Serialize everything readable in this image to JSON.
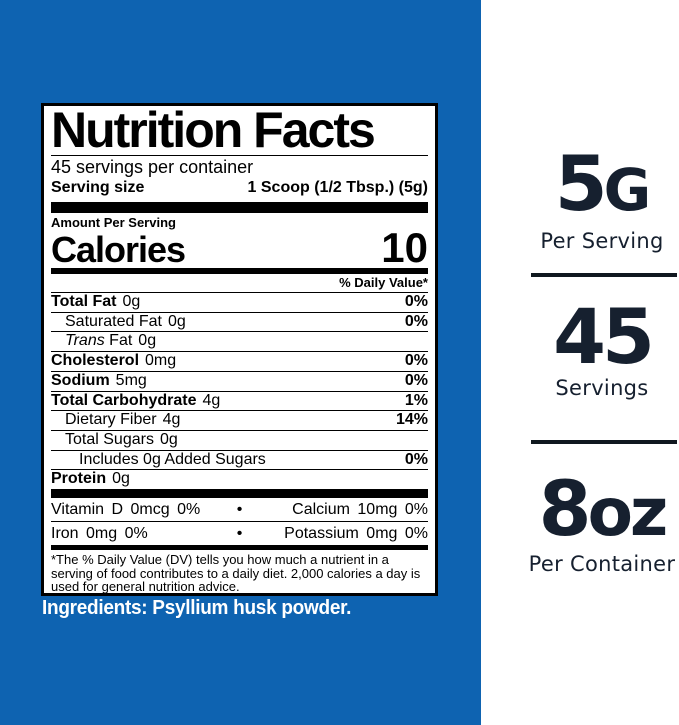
{
  "colors": {
    "background_blue": "#0e63b1",
    "highlight_navy": "#16202f",
    "divider_black": "#10181f",
    "label_background": "#ffffff",
    "label_text": "#000000",
    "ingredients_text": "#ffffff"
  },
  "nutrition_label": {
    "title": "Nutrition Facts",
    "servings_per_container": "45 servings per container",
    "serving_size": {
      "label": "Serving size",
      "value": "1 Scoop (1/2 Tbsp.) (5g)"
    },
    "amount_per_serving": "Amount Per Serving",
    "calories": {
      "label": "Calories",
      "value": "10"
    },
    "daily_value_header": "% Daily Value*",
    "rows": [
      {
        "name": "Total Fat",
        "amount": "0g",
        "dv": "0%"
      },
      {
        "name": "Saturated Fat",
        "amount": "0g",
        "dv": "0%"
      },
      {
        "name_italic": "Trans",
        "name": "Fat",
        "amount": "0g",
        "dv": ""
      },
      {
        "name": "Cholesterol",
        "amount": "0mg",
        "dv": "0%"
      },
      {
        "name": "Sodium",
        "amount": "5mg",
        "dv": "0%"
      },
      {
        "name": "Total Carbohydrate",
        "amount": "4g",
        "dv": "1%"
      },
      {
        "name": "Dietary Fiber",
        "amount": "4g",
        "dv": "14%"
      },
      {
        "name": "Total Sugars",
        "amount": "0g",
        "dv": ""
      },
      {
        "name": "Includes 0g Added Sugars",
        "amount": "",
        "dv": "0%"
      },
      {
        "name": "Protein",
        "amount": "0g",
        "dv": ""
      }
    ],
    "micronutrients": [
      {
        "left": "Vitamin D 0mcg 0%",
        "bullet": "•",
        "right": "Calcium 10mg 0%"
      },
      {
        "left": "Iron 0mg 0%",
        "bullet": "•",
        "right": "Potassium 0mg 0%"
      }
    ],
    "footnote": "*The % Daily Value (DV) tells you how much a nutrient in a serving of food contributes to a daily diet.  2,000 calories a day is used for general nutrition advice."
  },
  "ingredients": "Ingredients: Psyllium husk powder.",
  "highlights": [
    {
      "value": "5",
      "unit": "G",
      "caption": "Per Serving"
    },
    {
      "value": "45",
      "unit": "",
      "caption": "Servings"
    },
    {
      "value": "8",
      "unit": "oz",
      "caption": "Per Container"
    }
  ]
}
